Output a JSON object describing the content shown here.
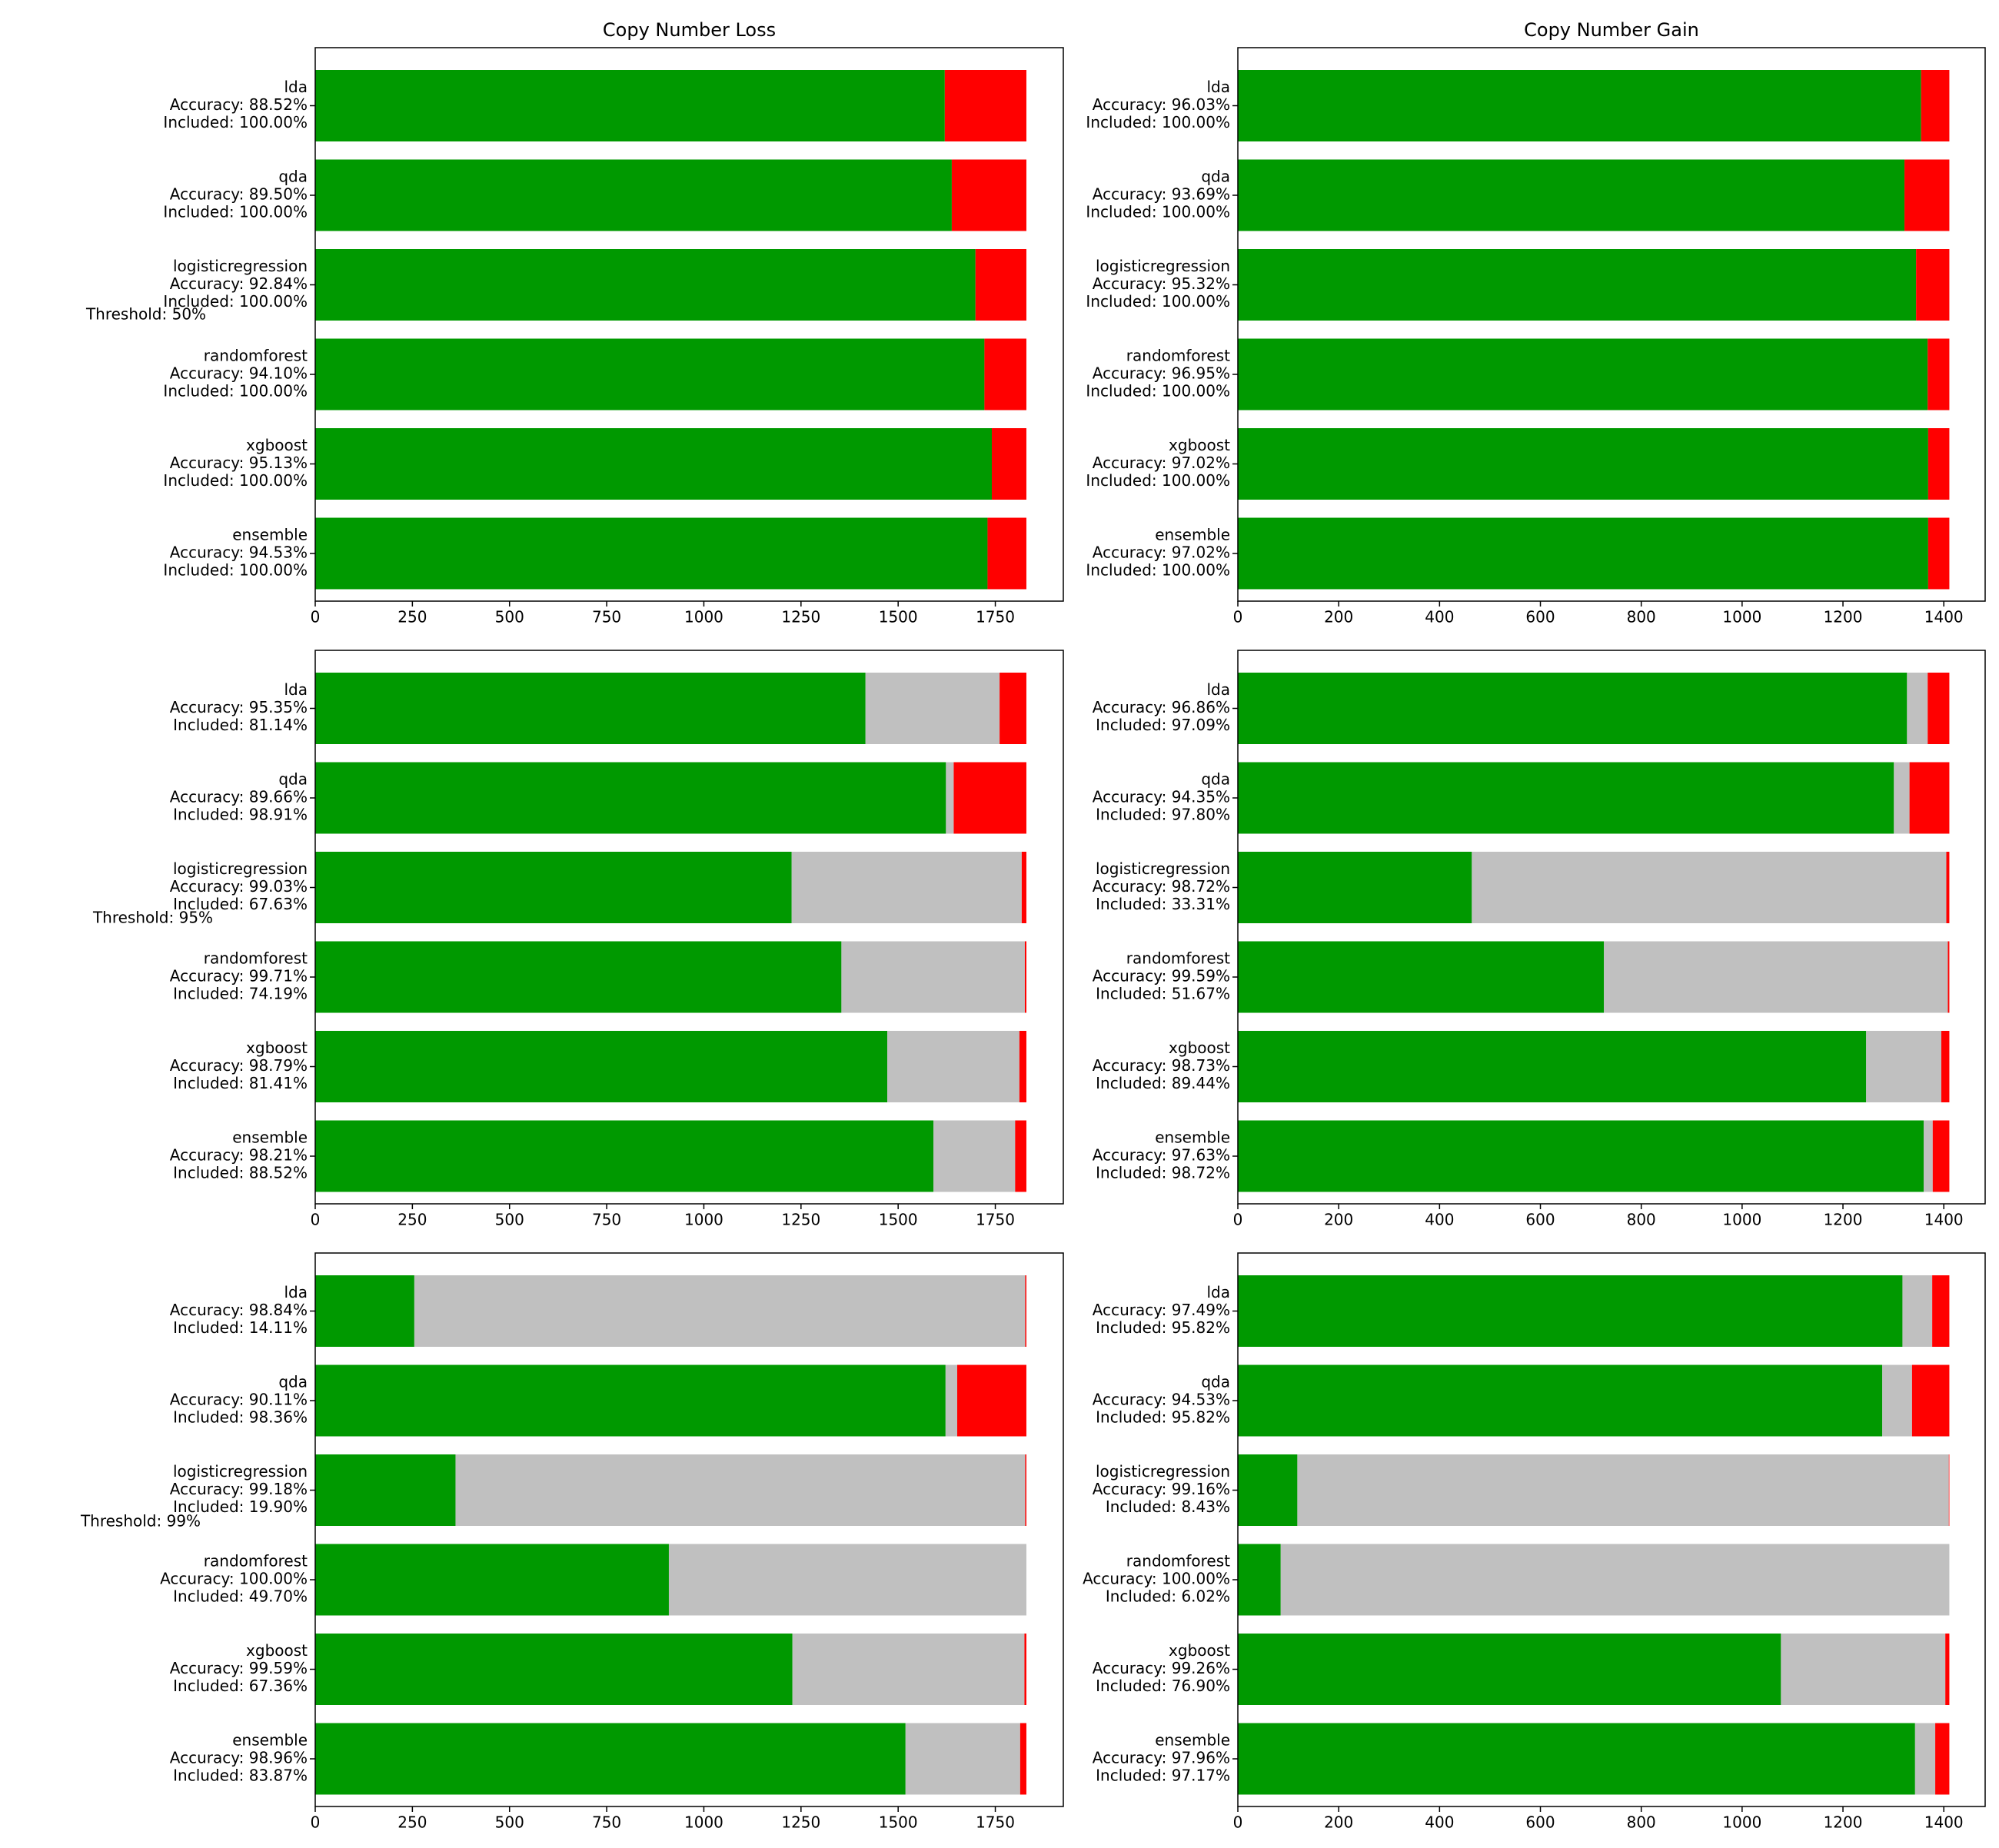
{
  "colors": {
    "correct": "#009900",
    "excluded": "#c0c0c0",
    "incorrect": "#ff0000",
    "axis": "#000000",
    "background": "#ffffff"
  },
  "columns": [
    {
      "title": "Copy Number Loss",
      "xlim": [
        0,
        1925
      ],
      "ticks": [
        0,
        250,
        500,
        750,
        1000,
        1250,
        1500,
        1750
      ]
    },
    {
      "title": "Copy Number Gain",
      "xlim": [
        0,
        1482
      ],
      "ticks": [
        0,
        200,
        400,
        600,
        800,
        1000,
        1200,
        1400
      ]
    }
  ],
  "rows": [
    {
      "label": "Threshold: 50%"
    },
    {
      "label": "Threshold: 95%"
    },
    {
      "label": "Threshold: 99%"
    }
  ],
  "chart_data": [
    {
      "type": "bar",
      "orientation": "horizontal",
      "stacked": true,
      "column": "Copy Number Loss",
      "row_label": "Threshold: 50%",
      "segments": [
        "correct",
        "excluded",
        "incorrect"
      ],
      "categories": [
        {
          "model": "lda",
          "accuracy": "Accuracy: 88.52%",
          "included": "Included: 100.00%",
          "values": [
            1620,
            0,
            210
          ]
        },
        {
          "model": "qda",
          "accuracy": "Accuracy: 89.50%",
          "included": "Included: 100.00%",
          "values": [
            1638,
            0,
            192
          ]
        },
        {
          "model": "logisticregression",
          "accuracy": "Accuracy: 92.84%",
          "included": "Included: 100.00%",
          "values": [
            1699,
            0,
            131
          ]
        },
        {
          "model": "randomforest",
          "accuracy": "Accuracy: 94.10%",
          "included": "Included: 100.00%",
          "values": [
            1722,
            0,
            108
          ]
        },
        {
          "model": "xgboost",
          "accuracy": "Accuracy: 95.13%",
          "included": "Included: 100.00%",
          "values": [
            1741,
            0,
            89
          ]
        },
        {
          "model": "ensemble",
          "accuracy": "Accuracy: 94.53%",
          "included": "Included: 100.00%",
          "values": [
            1730,
            0,
            100
          ]
        }
      ]
    },
    {
      "type": "bar",
      "orientation": "horizontal",
      "stacked": true,
      "column": "Copy Number Gain",
      "row_label": "Threshold: 50%",
      "segments": [
        "correct",
        "excluded",
        "incorrect"
      ],
      "categories": [
        {
          "model": "lda",
          "accuracy": "Accuracy: 96.03%",
          "included": "Included: 100.00%",
          "values": [
            1355,
            0,
            56
          ]
        },
        {
          "model": "qda",
          "accuracy": "Accuracy: 93.69%",
          "included": "Included: 100.00%",
          "values": [
            1322,
            0,
            89
          ]
        },
        {
          "model": "logisticregression",
          "accuracy": "Accuracy: 95.32%",
          "included": "Included: 100.00%",
          "values": [
            1345,
            0,
            66
          ]
        },
        {
          "model": "randomforest",
          "accuracy": "Accuracy: 96.95%",
          "included": "Included: 100.00%",
          "values": [
            1368,
            0,
            43
          ]
        },
        {
          "model": "xgboost",
          "accuracy": "Accuracy: 97.02%",
          "included": "Included: 100.00%",
          "values": [
            1369,
            0,
            42
          ]
        },
        {
          "model": "ensemble",
          "accuracy": "Accuracy: 97.02%",
          "included": "Included: 100.00%",
          "values": [
            1369,
            0,
            42
          ]
        }
      ]
    },
    {
      "type": "bar",
      "orientation": "horizontal",
      "stacked": true,
      "column": "Copy Number Loss",
      "row_label": "Threshold: 95%",
      "segments": [
        "correct",
        "excluded",
        "incorrect"
      ],
      "categories": [
        {
          "model": "lda",
          "accuracy": "Accuracy: 95.35%",
          "included": "Included: 81.14%",
          "values": [
            1416,
            345,
            69
          ]
        },
        {
          "model": "qda",
          "accuracy": "Accuracy: 89.66%",
          "included": "Included: 98.91%",
          "values": [
            1623,
            20,
            187
          ]
        },
        {
          "model": "logisticregression",
          "accuracy": "Accuracy: 99.03%",
          "included": "Included: 67.63%",
          "values": [
            1226,
            592,
            12
          ]
        },
        {
          "model": "randomforest",
          "accuracy": "Accuracy: 99.71%",
          "included": "Included: 74.19%",
          "values": [
            1354,
            472,
            4
          ]
        },
        {
          "model": "xgboost",
          "accuracy": "Accuracy: 98.79%",
          "included": "Included: 81.41%",
          "values": [
            1472,
            340,
            18
          ]
        },
        {
          "model": "ensemble",
          "accuracy": "Accuracy: 98.21%",
          "included": "Included: 88.52%",
          "values": [
            1591,
            210,
            29
          ]
        }
      ]
    },
    {
      "type": "bar",
      "orientation": "horizontal",
      "stacked": true,
      "column": "Copy Number Gain",
      "row_label": "Threshold: 95%",
      "segments": [
        "correct",
        "excluded",
        "incorrect"
      ],
      "categories": [
        {
          "model": "lda",
          "accuracy": "Accuracy: 96.86%",
          "included": "Included: 97.09%",
          "values": [
            1327,
            41,
            43
          ]
        },
        {
          "model": "qda",
          "accuracy": "Accuracy: 94.35%",
          "included": "Included: 97.80%",
          "values": [
            1301,
            31,
            79
          ]
        },
        {
          "model": "logisticregression",
          "accuracy": "Accuracy: 98.72%",
          "included": "Included: 33.31%",
          "values": [
            464,
            941,
            6
          ]
        },
        {
          "model": "randomforest",
          "accuracy": "Accuracy: 99.59%",
          "included": "Included: 51.67%",
          "values": [
            726,
            682,
            3
          ]
        },
        {
          "model": "xgboost",
          "accuracy": "Accuracy: 98.73%",
          "included": "Included: 89.44%",
          "values": [
            1246,
            149,
            16
          ]
        },
        {
          "model": "ensemble",
          "accuracy": "Accuracy: 97.63%",
          "included": "Included: 98.72%",
          "values": [
            1360,
            18,
            33
          ]
        }
      ]
    },
    {
      "type": "bar",
      "orientation": "horizontal",
      "stacked": true,
      "column": "Copy Number Loss",
      "row_label": "Threshold: 99%",
      "segments": [
        "correct",
        "excluded",
        "incorrect"
      ],
      "categories": [
        {
          "model": "lda",
          "accuracy": "Accuracy: 98.84%",
          "included": "Included: 14.11%",
          "values": [
            255,
            1572,
            3
          ]
        },
        {
          "model": "qda",
          "accuracy": "Accuracy: 90.11%",
          "included": "Included: 98.36%",
          "values": [
            1622,
            30,
            178
          ]
        },
        {
          "model": "logisticregression",
          "accuracy": "Accuracy: 99.18%",
          "included": "Included: 19.90%",
          "values": [
            361,
            1466,
            3
          ]
        },
        {
          "model": "randomforest",
          "accuracy": "Accuracy: 100.00%",
          "included": "Included: 49.70%",
          "values": [
            910,
            920,
            0
          ]
        },
        {
          "model": "xgboost",
          "accuracy": "Accuracy: 99.59%",
          "included": "Included: 67.36%",
          "values": [
            1228,
            597,
            5
          ]
        },
        {
          "model": "ensemble",
          "accuracy": "Accuracy: 98.96%",
          "included": "Included: 83.87%",
          "values": [
            1519,
            295,
            16
          ]
        }
      ]
    },
    {
      "type": "bar",
      "orientation": "horizontal",
      "stacked": true,
      "column": "Copy Number Gain",
      "row_label": "Threshold: 99%",
      "segments": [
        "correct",
        "excluded",
        "incorrect"
      ],
      "categories": [
        {
          "model": "lda",
          "accuracy": "Accuracy: 97.49%",
          "included": "Included: 95.82%",
          "values": [
            1318,
            59,
            34
          ]
        },
        {
          "model": "qda",
          "accuracy": "Accuracy: 94.53%",
          "included": "Included: 95.82%",
          "values": [
            1278,
            59,
            74
          ]
        },
        {
          "model": "logisticregression",
          "accuracy": "Accuracy: 99.16%",
          "included": "Included: 8.43%",
          "values": [
            118,
            1292,
            1
          ]
        },
        {
          "model": "randomforest",
          "accuracy": "Accuracy: 100.00%",
          "included": "Included: 6.02%",
          "values": [
            85,
            1326,
            0
          ]
        },
        {
          "model": "xgboost",
          "accuracy": "Accuracy: 99.26%",
          "included": "Included: 76.90%",
          "values": [
            1077,
            326,
            8
          ]
        },
        {
          "model": "ensemble",
          "accuracy": "Accuracy: 97.96%",
          "included": "Included: 97.17%",
          "values": [
            1343,
            40,
            28
          ]
        }
      ]
    }
  ]
}
